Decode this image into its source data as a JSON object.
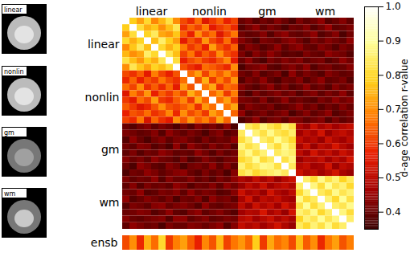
{
  "chart_data": {
    "type": "heatmap",
    "thumbnail_labels": [
      "linear",
      "nonlin",
      "gm",
      "wm"
    ],
    "groups": [
      "linear",
      "nonlin",
      "gm",
      "wm"
    ],
    "values": [
      [
        1.0,
        0.78,
        0.72,
        0.8,
        0.69,
        0.75,
        0.82,
        0.7,
        0.62,
        0.58,
        0.66,
        0.55,
        0.6,
        0.64,
        0.57,
        0.61,
        0.4,
        0.42,
        0.38,
        0.41,
        0.39,
        0.43,
        0.4,
        0.37,
        0.42,
        0.39,
        0.41,
        0.44,
        0.38,
        0.4,
        0.43,
        0.39
      ],
      [
        0.78,
        1.0,
        0.81,
        0.74,
        0.77,
        0.7,
        0.76,
        0.83,
        0.59,
        0.65,
        0.61,
        0.68,
        0.56,
        0.6,
        0.63,
        0.58,
        0.38,
        0.41,
        0.44,
        0.39,
        0.42,
        0.4,
        0.37,
        0.41,
        0.4,
        0.43,
        0.38,
        0.41,
        0.45,
        0.39,
        0.4,
        0.42
      ],
      [
        0.72,
        0.81,
        1.0,
        0.79,
        0.84,
        0.73,
        0.71,
        0.77,
        0.64,
        0.57,
        0.7,
        0.62,
        0.66,
        0.55,
        0.61,
        0.67,
        0.41,
        0.39,
        0.4,
        0.43,
        0.38,
        0.42,
        0.44,
        0.4,
        0.39,
        0.41,
        0.44,
        0.38,
        0.4,
        0.43,
        0.37,
        0.41
      ],
      [
        0.8,
        0.74,
        0.79,
        1.0,
        0.76,
        0.85,
        0.78,
        0.72,
        0.56,
        0.63,
        0.59,
        0.71,
        0.62,
        0.58,
        0.66,
        0.54,
        0.43,
        0.4,
        0.37,
        0.42,
        0.41,
        0.39,
        0.42,
        0.44,
        0.41,
        0.38,
        0.42,
        0.4,
        0.43,
        0.41,
        0.39,
        0.44
      ],
      [
        0.69,
        0.77,
        0.84,
        0.76,
        1.0,
        0.8,
        0.74,
        0.79,
        0.68,
        0.6,
        0.64,
        0.57,
        0.72,
        0.63,
        0.59,
        0.65,
        0.39,
        0.43,
        0.41,
        0.38,
        0.4,
        0.44,
        0.39,
        0.42,
        0.44,
        0.4,
        0.39,
        0.43,
        0.41,
        0.38,
        0.42,
        0.4
      ],
      [
        0.75,
        0.7,
        0.73,
        0.85,
        0.8,
        1.0,
        0.83,
        0.76,
        0.61,
        0.67,
        0.58,
        0.64,
        0.6,
        0.7,
        0.62,
        0.59,
        0.42,
        0.38,
        0.43,
        0.4,
        0.44,
        0.41,
        0.38,
        0.39,
        0.38,
        0.42,
        0.4,
        0.39,
        0.44,
        0.42,
        0.41,
        0.38
      ],
      [
        0.82,
        0.76,
        0.71,
        0.78,
        0.74,
        0.83,
        1.0,
        0.81,
        0.57,
        0.62,
        0.65,
        0.6,
        0.58,
        0.63,
        0.69,
        0.56,
        0.4,
        0.44,
        0.39,
        0.37,
        0.42,
        0.4,
        0.43,
        0.41,
        0.43,
        0.39,
        0.41,
        0.42,
        0.38,
        0.4,
        0.44,
        0.41
      ],
      [
        0.7,
        0.83,
        0.77,
        0.72,
        0.79,
        0.76,
        0.81,
        1.0,
        0.63,
        0.59,
        0.56,
        0.66,
        0.64,
        0.61,
        0.58,
        0.7,
        0.37,
        0.41,
        0.42,
        0.44,
        0.39,
        0.38,
        0.41,
        0.43,
        0.4,
        0.44,
        0.38,
        0.41,
        0.42,
        0.39,
        0.4,
        0.43
      ],
      [
        0.62,
        0.59,
        0.64,
        0.56,
        0.68,
        0.61,
        0.57,
        0.63,
        1.0,
        0.66,
        0.72,
        0.61,
        0.69,
        0.64,
        0.7,
        0.63,
        0.41,
        0.39,
        0.43,
        0.38,
        0.4,
        0.42,
        0.37,
        0.44,
        0.39,
        0.42,
        0.4,
        0.38,
        0.43,
        0.41,
        0.39,
        0.4
      ],
      [
        0.58,
        0.65,
        0.57,
        0.63,
        0.6,
        0.67,
        0.62,
        0.59,
        0.66,
        1.0,
        0.63,
        0.74,
        0.6,
        0.68,
        0.62,
        0.71,
        0.38,
        0.42,
        0.4,
        0.44,
        0.39,
        0.37,
        0.41,
        0.4,
        0.43,
        0.38,
        0.41,
        0.44,
        0.39,
        0.4,
        0.42,
        0.38
      ],
      [
        0.66,
        0.61,
        0.7,
        0.59,
        0.64,
        0.58,
        0.65,
        0.56,
        0.72,
        0.63,
        1.0,
        0.67,
        0.73,
        0.59,
        0.66,
        0.64,
        0.43,
        0.4,
        0.38,
        0.41,
        0.44,
        0.39,
        0.42,
        0.38,
        0.4,
        0.44,
        0.39,
        0.41,
        0.38,
        0.43,
        0.4,
        0.42
      ],
      [
        0.55,
        0.68,
        0.62,
        0.71,
        0.57,
        0.64,
        0.6,
        0.66,
        0.61,
        0.74,
        0.67,
        1.0,
        0.65,
        0.71,
        0.6,
        0.68,
        0.4,
        0.37,
        0.42,
        0.39,
        0.41,
        0.43,
        0.4,
        0.42,
        0.38,
        0.41,
        0.43,
        0.39,
        0.42,
        0.4,
        0.44,
        0.39
      ],
      [
        0.6,
        0.56,
        0.66,
        0.62,
        0.72,
        0.6,
        0.58,
        0.64,
        0.69,
        0.6,
        0.73,
        0.65,
        1.0,
        0.66,
        0.72,
        0.62,
        0.42,
        0.41,
        0.39,
        0.43,
        0.38,
        0.4,
        0.44,
        0.39,
        0.41,
        0.39,
        0.38,
        0.42,
        0.4,
        0.44,
        0.41,
        0.43
      ],
      [
        0.64,
        0.6,
        0.55,
        0.58,
        0.63,
        0.7,
        0.63,
        0.61,
        0.64,
        0.68,
        0.59,
        0.71,
        0.66,
        1.0,
        0.67,
        0.73,
        0.39,
        0.43,
        0.41,
        0.4,
        0.42,
        0.38,
        0.39,
        0.41,
        0.44,
        0.4,
        0.42,
        0.38,
        0.41,
        0.39,
        0.43,
        0.4
      ],
      [
        0.57,
        0.63,
        0.61,
        0.66,
        0.59,
        0.62,
        0.69,
        0.58,
        0.7,
        0.62,
        0.66,
        0.6,
        0.72,
        0.67,
        1.0,
        0.65,
        0.44,
        0.38,
        0.4,
        0.42,
        0.39,
        0.41,
        0.43,
        0.37,
        0.4,
        0.43,
        0.39,
        0.41,
        0.44,
        0.38,
        0.4,
        0.42
      ],
      [
        0.61,
        0.58,
        0.67,
        0.54,
        0.65,
        0.59,
        0.56,
        0.7,
        0.63,
        0.71,
        0.64,
        0.68,
        0.62,
        0.73,
        0.65,
        1.0,
        0.37,
        0.4,
        0.44,
        0.38,
        0.41,
        0.42,
        0.39,
        0.43,
        0.42,
        0.39,
        0.41,
        0.43,
        0.38,
        0.42,
        0.39,
        0.41
      ],
      [
        0.4,
        0.38,
        0.41,
        0.43,
        0.39,
        0.42,
        0.4,
        0.37,
        0.41,
        0.38,
        0.43,
        0.4,
        0.42,
        0.39,
        0.44,
        0.37,
        1.0,
        0.84,
        0.81,
        0.87,
        0.83,
        0.8,
        0.86,
        0.82,
        0.48,
        0.45,
        0.52,
        0.47,
        0.5,
        0.46,
        0.49,
        0.51
      ],
      [
        0.42,
        0.41,
        0.39,
        0.4,
        0.43,
        0.38,
        0.44,
        0.41,
        0.39,
        0.42,
        0.4,
        0.37,
        0.41,
        0.43,
        0.38,
        0.4,
        0.84,
        1.0,
        0.86,
        0.82,
        0.88,
        0.83,
        0.81,
        0.85,
        0.46,
        0.5,
        0.47,
        0.53,
        0.45,
        0.49,
        0.51,
        0.48
      ],
      [
        0.38,
        0.44,
        0.4,
        0.37,
        0.41,
        0.43,
        0.39,
        0.42,
        0.43,
        0.4,
        0.38,
        0.42,
        0.39,
        0.41,
        0.4,
        0.44,
        0.81,
        0.86,
        1.0,
        0.85,
        0.82,
        0.89,
        0.84,
        0.8,
        0.51,
        0.47,
        0.49,
        0.45,
        0.52,
        0.48,
        0.46,
        0.5
      ],
      [
        0.41,
        0.39,
        0.43,
        0.42,
        0.38,
        0.4,
        0.37,
        0.44,
        0.38,
        0.44,
        0.41,
        0.39,
        0.43,
        0.4,
        0.42,
        0.38,
        0.87,
        0.82,
        0.85,
        1.0,
        0.86,
        0.81,
        0.88,
        0.83,
        0.47,
        0.52,
        0.45,
        0.5,
        0.48,
        0.54,
        0.49,
        0.46
      ],
      [
        0.39,
        0.42,
        0.38,
        0.41,
        0.4,
        0.44,
        0.42,
        0.39,
        0.4,
        0.39,
        0.44,
        0.41,
        0.38,
        0.42,
        0.39,
        0.41,
        0.83,
        0.88,
        0.82,
        0.86,
        1.0,
        0.84,
        0.87,
        0.85,
        0.5,
        0.46,
        0.53,
        0.48,
        0.51,
        0.47,
        0.52,
        0.49
      ],
      [
        0.43,
        0.4,
        0.42,
        0.39,
        0.44,
        0.41,
        0.4,
        0.38,
        0.42,
        0.37,
        0.39,
        0.43,
        0.4,
        0.38,
        0.41,
        0.42,
        0.8,
        0.83,
        0.89,
        0.81,
        0.84,
        1.0,
        0.82,
        0.87,
        0.45,
        0.49,
        0.48,
        0.51,
        0.46,
        0.5,
        0.47,
        0.53
      ],
      [
        0.4,
        0.37,
        0.44,
        0.42,
        0.39,
        0.38,
        0.43,
        0.41,
        0.37,
        0.41,
        0.42,
        0.4,
        0.44,
        0.39,
        0.43,
        0.39,
        0.86,
        0.81,
        0.84,
        0.88,
        0.87,
        0.82,
        1.0,
        0.84,
        0.49,
        0.51,
        0.46,
        0.47,
        0.53,
        0.45,
        0.5,
        0.48
      ],
      [
        0.37,
        0.41,
        0.4,
        0.44,
        0.42,
        0.39,
        0.41,
        0.43,
        0.44,
        0.4,
        0.38,
        0.42,
        0.39,
        0.41,
        0.37,
        0.43,
        0.82,
        0.85,
        0.8,
        0.83,
        0.85,
        0.87,
        0.84,
        1.0,
        0.52,
        0.48,
        0.5,
        0.46,
        0.49,
        0.53,
        0.47,
        0.45
      ],
      [
        0.42,
        0.39,
        0.41,
        0.4,
        0.44,
        0.38,
        0.43,
        0.4,
        0.4,
        0.43,
        0.39,
        0.41,
        0.38,
        0.42,
        0.4,
        0.44,
        0.48,
        0.46,
        0.51,
        0.47,
        0.5,
        0.45,
        0.49,
        0.52,
        1.0,
        0.85,
        0.8,
        0.88,
        0.82,
        0.86,
        0.79,
        0.84
      ],
      [
        0.39,
        0.43,
        0.38,
        0.42,
        0.4,
        0.41,
        0.39,
        0.44,
        0.42,
        0.38,
        0.41,
        0.4,
        0.43,
        0.39,
        0.44,
        0.41,
        0.45,
        0.5,
        0.47,
        0.52,
        0.46,
        0.49,
        0.51,
        0.48,
        0.85,
        1.0,
        0.87,
        0.81,
        0.89,
        0.83,
        0.86,
        0.8
      ],
      [
        0.41,
        0.4,
        0.44,
        0.38,
        0.39,
        0.42,
        0.41,
        0.43,
        0.39,
        0.44,
        0.4,
        0.42,
        0.41,
        0.38,
        0.39,
        0.43,
        0.52,
        0.47,
        0.49,
        0.45,
        0.53,
        0.48,
        0.46,
        0.5,
        0.8,
        0.87,
        1.0,
        0.84,
        0.81,
        0.88,
        0.83,
        0.86
      ],
      [
        0.44,
        0.38,
        0.4,
        0.43,
        0.41,
        0.39,
        0.42,
        0.37,
        0.41,
        0.4,
        0.43,
        0.38,
        0.44,
        0.41,
        0.42,
        0.39,
        0.47,
        0.53,
        0.45,
        0.5,
        0.48,
        0.51,
        0.47,
        0.46,
        0.88,
        0.81,
        0.84,
        1.0,
        0.86,
        0.8,
        0.89,
        0.82
      ],
      [
        0.38,
        0.42,
        0.41,
        0.39,
        0.43,
        0.44,
        0.4,
        0.42,
        0.43,
        0.41,
        0.38,
        0.44,
        0.4,
        0.39,
        0.41,
        0.42,
        0.5,
        0.45,
        0.52,
        0.48,
        0.51,
        0.46,
        0.53,
        0.49,
        0.82,
        0.89,
        0.81,
        0.86,
        1.0,
        0.85,
        0.83,
        0.88
      ],
      [
        0.4,
        0.41,
        0.43,
        0.42,
        0.38,
        0.4,
        0.44,
        0.39,
        0.38,
        0.42,
        0.44,
        0.39,
        0.41,
        0.43,
        0.4,
        0.38,
        0.46,
        0.49,
        0.48,
        0.54,
        0.47,
        0.5,
        0.45,
        0.53,
        0.86,
        0.83,
        0.88,
        0.8,
        0.85,
        1.0,
        0.87,
        0.81
      ],
      [
        0.43,
        0.4,
        0.39,
        0.41,
        0.42,
        0.43,
        0.38,
        0.44,
        0.44,
        0.39,
        0.41,
        0.43,
        0.39,
        0.4,
        0.42,
        0.41,
        0.49,
        0.51,
        0.46,
        0.49,
        0.52,
        0.47,
        0.5,
        0.47,
        0.79,
        0.86,
        0.83,
        0.89,
        0.83,
        0.87,
        1.0,
        0.85
      ],
      [
        0.39,
        0.44,
        0.42,
        0.4,
        0.41,
        0.37,
        0.42,
        0.4,
        0.4,
        0.43,
        0.42,
        0.4,
        0.42,
        0.44,
        0.38,
        0.43,
        0.51,
        0.48,
        0.5,
        0.46,
        0.49,
        0.53,
        0.48,
        0.45,
        0.84,
        0.8,
        0.86,
        0.82,
        0.88,
        0.81,
        0.85,
        1.0
      ]
    ],
    "ensemble_label": "ensb",
    "ensemble_values": [
      0.62,
      0.7,
      0.58,
      0.74,
      0.66,
      0.8,
      0.6,
      0.68,
      0.72,
      0.64,
      0.57,
      0.69,
      0.63,
      0.75,
      0.61,
      0.67,
      0.71,
      0.65,
      0.78,
      0.6,
      0.73,
      0.66,
      0.69,
      0.62,
      0.76,
      0.64,
      0.7,
      0.58,
      0.67,
      0.72,
      0.63,
      0.68
    ],
    "colorbar": {
      "label": "d-age correlation r-value",
      "range": [
        0.35,
        1.0
      ],
      "ticks": [
        0.4,
        0.5,
        0.6,
        0.7,
        0.8,
        0.9,
        {
          "value": 1.0,
          "label": "1.0"
        }
      ]
    }
  }
}
